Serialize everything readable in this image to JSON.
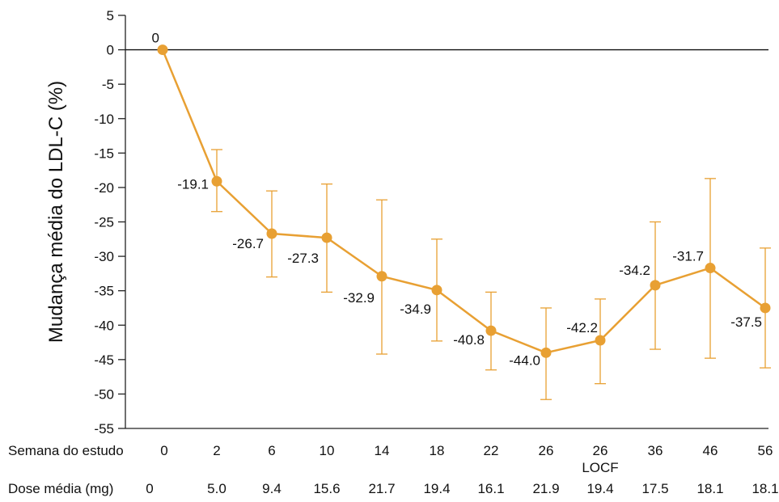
{
  "chart_data": {
    "type": "line",
    "ylabel": "Mudança média do LDL-C (%)",
    "ylim": [
      -55,
      5
    ],
    "yticks": [
      5,
      0,
      -5,
      -10,
      -15,
      -20,
      -25,
      -30,
      -35,
      -40,
      -45,
      -50,
      -55
    ],
    "categories": [
      "0",
      "2",
      "6",
      "10",
      "14",
      "18",
      "22",
      "26",
      "26",
      "36",
      "46",
      "56"
    ],
    "sub_labels": [
      "",
      "",
      "",
      "",
      "",
      "",
      "",
      "",
      "LOCF",
      "",
      "",
      ""
    ],
    "values": [
      0,
      -19.1,
      -26.7,
      -27.3,
      -32.9,
      -34.9,
      -40.8,
      -44.0,
      -42.2,
      -34.2,
      -31.7,
      -37.5
    ],
    "value_labels": [
      "0",
      "-19.1",
      "-26.7",
      "-27.3",
      "-32.9",
      "-34.9",
      "-40.8",
      "-44.0",
      "-42.2",
      "-34.2",
      "-31.7",
      "-37.5"
    ],
    "error_upper": [
      null,
      -14.5,
      -20.5,
      -19.5,
      -21.8,
      -27.5,
      -35.2,
      -37.5,
      -36.2,
      -25.0,
      -18.7,
      -28.8
    ],
    "error_lower": [
      null,
      -23.5,
      -33.0,
      -35.2,
      -44.2,
      -42.3,
      -46.5,
      -50.8,
      -48.5,
      -43.5,
      -44.8,
      -46.2
    ],
    "color": "#E8A033",
    "zero_line": true,
    "row1_label": "Semana do estudo",
    "row2_label": "Dose média (mg)",
    "doses": [
      "0",
      "5.0",
      "9.4",
      "15.6",
      "21.7",
      "19.4",
      "16.1",
      "21.9",
      "19.4",
      "17.5",
      "18.1",
      "18.1"
    ]
  }
}
